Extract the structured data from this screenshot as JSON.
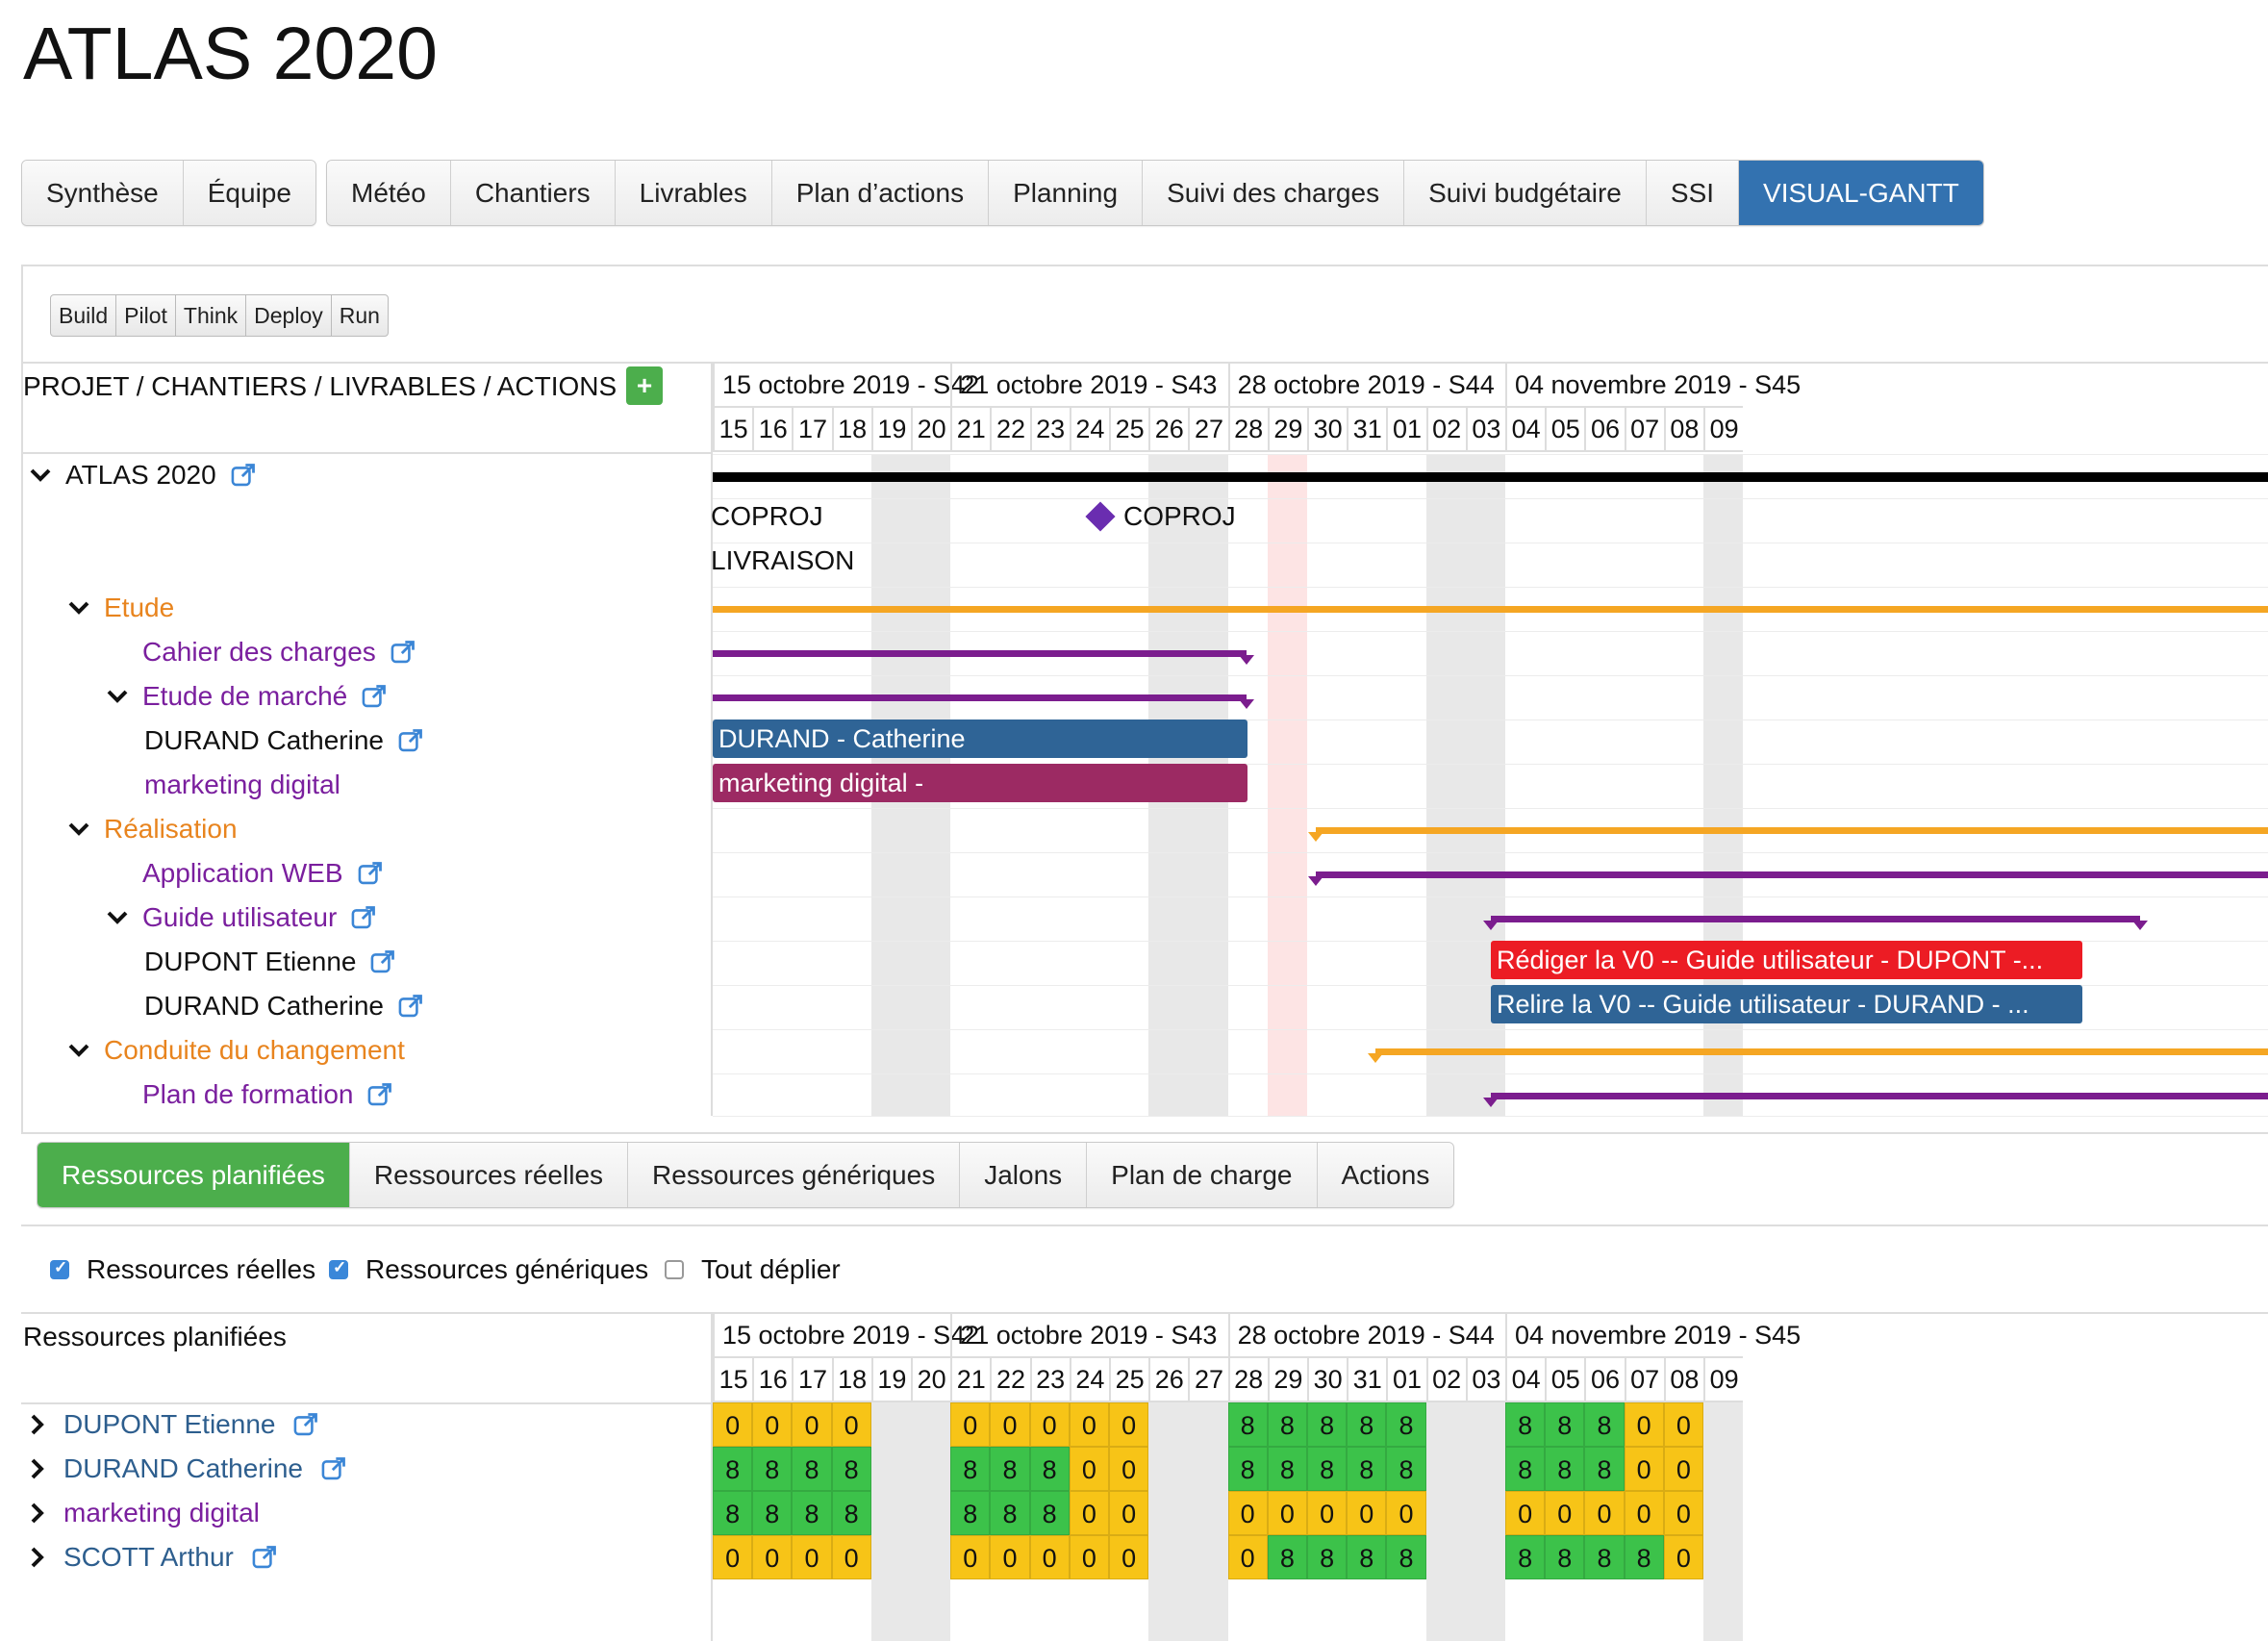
{
  "app_title": "ATLAS 2020",
  "tabs_left": [
    "Synthèse",
    "Équipe"
  ],
  "tabs_right": [
    "Météo",
    "Chantiers",
    "Livrables",
    "Plan d’actions",
    "Planning",
    "Suivi des charges",
    "Suivi budgétaire",
    "SSI",
    "VISUAL-GANTT"
  ],
  "active_tab": "VISUAL-GANTT",
  "phase_filters": [
    "Build",
    "Pilot",
    "Think",
    "Deploy",
    "Run"
  ],
  "gantt": {
    "header_label": "PROJET / CHANTIERS / LIVRABLES / ACTIONS",
    "add_icon": "+",
    "weeks": [
      "15 octobre 2019 - S42",
      "21 octobre 2019 - S43",
      "28 octobre 2019 - S44",
      "04 novembre 2019 - S45"
    ],
    "days": [
      "15",
      "16",
      "17",
      "18",
      "19",
      "20",
      "21",
      "22",
      "23",
      "24",
      "25",
      "26",
      "27",
      "28",
      "29",
      "30",
      "31",
      "01",
      "02",
      "03",
      "04",
      "05",
      "06",
      "07",
      "08",
      "09"
    ],
    "tree": [
      {
        "label": "ATLAS 2020",
        "level": 0,
        "kind": "project",
        "expanded": true,
        "link": true
      },
      {
        "label": "Etude",
        "level": 1,
        "kind": "phase",
        "expanded": true,
        "link": false
      },
      {
        "label": "Cahier des charges",
        "level": 2,
        "kind": "deliverable",
        "link": true
      },
      {
        "label": "Etude de marché",
        "level": 2,
        "kind": "deliverable",
        "expanded": true,
        "link": true
      },
      {
        "label": "DURAND Catherine",
        "level": 3,
        "kind": "resource",
        "link": true
      },
      {
        "label": "marketing digital",
        "level": 3,
        "kind": "generic",
        "link": false
      },
      {
        "label": "Réalisation",
        "level": 1,
        "kind": "phase",
        "expanded": true,
        "link": false
      },
      {
        "label": "Application WEB",
        "level": 2,
        "kind": "deliverable",
        "link": true
      },
      {
        "label": "Guide utilisateur",
        "level": 2,
        "kind": "deliverable",
        "expanded": true,
        "link": true
      },
      {
        "label": "DUPONT Etienne",
        "level": 3,
        "kind": "resource",
        "link": true
      },
      {
        "label": "DURAND Catherine",
        "level": 3,
        "kind": "resource",
        "link": true
      },
      {
        "label": "Conduite du changement",
        "level": 1,
        "kind": "phase",
        "expanded": true,
        "link": false
      },
      {
        "label": "Plan de formation",
        "level": 2,
        "kind": "deliverable",
        "link": true
      }
    ],
    "milestones": [
      "COPROJ",
      "LIVRAISON",
      "COPROJ"
    ],
    "bars": [
      "DURAND - Catherine",
      "marketing digital -",
      "Rédiger la V0 -- Guide utilisateur - DUPONT -...",
      "Relire la V0 -- Guide utilisateur - DURAND - ..."
    ],
    "colors": {
      "project": "#000000",
      "phase": "#f5a623",
      "deliverable": "#7b1d8e",
      "bar_blue": "#2f6496",
      "bar_magenta": "#9c2a63",
      "bar_red": "#ec1c24",
      "weekend": "#e8e8e8",
      "today": "#fde4e4"
    }
  },
  "bottom_tabs": [
    "Ressources planifiées",
    "Ressources réelles",
    "Ressources génériques",
    "Jalons",
    "Plan de charge",
    "Actions"
  ],
  "bottom_active": "Ressources planifiées",
  "checkboxes": [
    {
      "label": "Ressources réelles",
      "checked": true
    },
    {
      "label": "Ressources génériques",
      "checked": true
    },
    {
      "label": "Tout déplier",
      "checked": false
    }
  ],
  "resources": {
    "header_label": "Ressources planifiées",
    "rows": [
      {
        "name": "DUPONT Etienne",
        "link": true,
        "kind": "resource",
        "values": [
          "0",
          "0",
          "0",
          "0",
          "",
          "",
          "0",
          "0",
          "0",
          "0",
          "0",
          "",
          "",
          "8",
          "8",
          "8",
          "8",
          "8",
          "",
          "",
          "8",
          "8",
          "8",
          "0",
          "0",
          ""
        ]
      },
      {
        "name": "DURAND Catherine",
        "link": true,
        "kind": "resource",
        "values": [
          "8",
          "8",
          "8",
          "8",
          "",
          "",
          "8",
          "8",
          "8",
          "0",
          "0",
          "",
          "",
          "8",
          "8",
          "8",
          "8",
          "8",
          "",
          "",
          "8",
          "8",
          "8",
          "0",
          "0",
          ""
        ]
      },
      {
        "name": "marketing digital",
        "link": false,
        "kind": "generic",
        "values": [
          "8",
          "8",
          "8",
          "8",
          "",
          "",
          "8",
          "8",
          "8",
          "0",
          "0",
          "",
          "",
          "0",
          "0",
          "0",
          "0",
          "0",
          "",
          "",
          "0",
          "0",
          "0",
          "0",
          "0",
          ""
        ]
      },
      {
        "name": "SCOTT Arthur",
        "link": true,
        "kind": "resource",
        "values": [
          "0",
          "0",
          "0",
          "0",
          "",
          "",
          "0",
          "0",
          "0",
          "0",
          "0",
          "",
          "",
          "0",
          "8",
          "8",
          "8",
          "8",
          "",
          "",
          "8",
          "8",
          "8",
          "8",
          "0",
          ""
        ]
      }
    ],
    "colors": {
      "green": "#3cc24a",
      "yellow": "#f7c417",
      "weekend": "#e8e8e8"
    }
  }
}
